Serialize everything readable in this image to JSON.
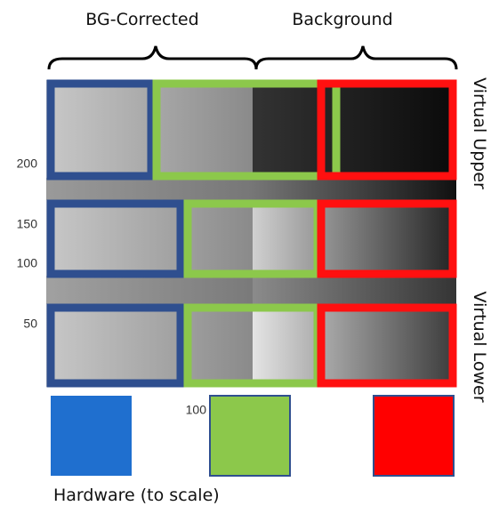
{
  "labels": {
    "left_group": "BG-Corrected",
    "right_group": "Background",
    "upper": "Virtual Upper",
    "lower": "Virtual Lower",
    "hardware": "Hardware (to scale)"
  },
  "axis_labels": [
    200,
    150,
    100,
    50
  ],
  "scale_label": 100
}
